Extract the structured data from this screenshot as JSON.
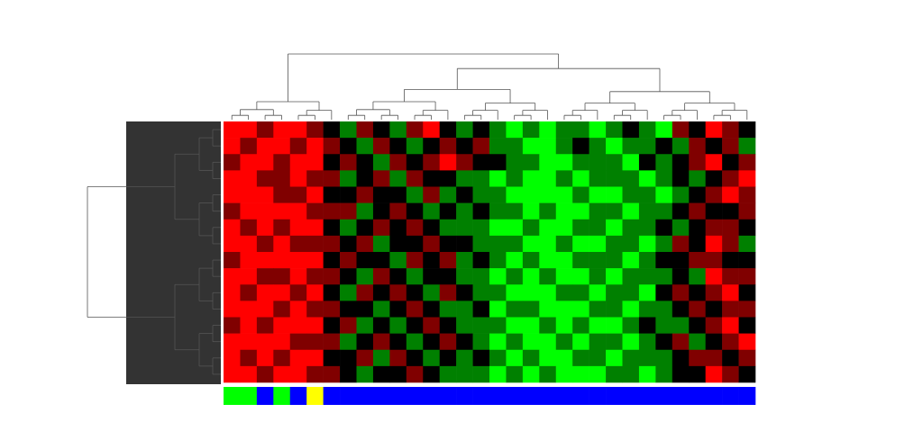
{
  "chart_data": {
    "type": "heatmap",
    "clim": [
      -2,
      2
    ],
    "colors": {
      "low": "#00ff00",
      "mid": "#000000",
      "high": "#ff0000"
    },
    "annotation": [
      "#00ff00",
      "#00ff00",
      "#0000ff",
      "#00ff00",
      "#0000ff",
      "#ffff00",
      "#0000ff",
      "#0000ff",
      "#0000ff",
      "#0000ff",
      "#0000ff",
      "#0000ff",
      "#0000ff",
      "#0000ff",
      "#0000ff",
      "#0000ff",
      "#0000ff",
      "#0000ff",
      "#0000ff",
      "#0000ff",
      "#0000ff",
      "#0000ff",
      "#0000ff",
      "#0000ff",
      "#0000ff",
      "#0000ff",
      "#0000ff",
      "#0000ff",
      "#0000ff",
      "#0000ff",
      "#0000ff",
      "#0000ff"
    ],
    "values": [
      [
        2,
        2,
        1,
        2,
        2,
        1,
        0,
        -1,
        1,
        0,
        -1,
        1,
        2,
        0,
        -1,
        0,
        -1,
        -2,
        -1,
        -2,
        -1,
        -1,
        -2,
        -1,
        0,
        -1,
        -2,
        1,
        0,
        2,
        1,
        0
      ],
      [
        2,
        1,
        2,
        2,
        1,
        2,
        1,
        0,
        -1,
        1,
        0,
        -1,
        0,
        1,
        0,
        1,
        -1,
        -1,
        -2,
        -2,
        -1,
        0,
        -1,
        -2,
        -1,
        -1,
        0,
        -1,
        1,
        0,
        1,
        -1
      ],
      [
        1,
        2,
        2,
        1,
        2,
        2,
        0,
        1,
        0,
        -1,
        1,
        0,
        1,
        2,
        1,
        0,
        0,
        -1,
        -1,
        -2,
        -2,
        -1,
        -1,
        -1,
        -2,
        0,
        -1,
        0,
        1,
        2,
        0,
        1
      ],
      [
        2,
        2,
        1,
        1,
        2,
        1,
        1,
        -1,
        0,
        1,
        -1,
        1,
        0,
        0,
        -1,
        -1,
        -2,
        -1,
        -2,
        -2,
        -1,
        -2,
        -1,
        -1,
        -1,
        -2,
        -1,
        0,
        -1,
        0,
        1,
        2
      ],
      [
        2,
        2,
        2,
        1,
        1,
        2,
        0,
        0,
        1,
        0,
        0,
        -1,
        1,
        -1,
        0,
        -1,
        -1,
        -2,
        -2,
        -2,
        -2,
        -1,
        -2,
        -2,
        -1,
        -1,
        -2,
        -1,
        0,
        1,
        2,
        1
      ],
      [
        1,
        2,
        2,
        2,
        2,
        1,
        1,
        1,
        -1,
        0,
        1,
        0,
        -1,
        0,
        -1,
        0,
        -1,
        -1,
        -2,
        -1,
        -2,
        -2,
        -1,
        -1,
        -2,
        -1,
        -1,
        0,
        1,
        0,
        0,
        1
      ],
      [
        2,
        1,
        2,
        1,
        2,
        2,
        0,
        -1,
        0,
        1,
        0,
        1,
        0,
        -1,
        -1,
        -1,
        -2,
        -2,
        -1,
        -2,
        -2,
        -1,
        -1,
        -2,
        -1,
        -1,
        0,
        -1,
        0,
        1,
        1,
        0
      ],
      [
        2,
        2,
        1,
        2,
        1,
        1,
        1,
        0,
        1,
        -1,
        0,
        0,
        1,
        0,
        0,
        -1,
        -1,
        -1,
        -2,
        -2,
        -1,
        -2,
        -2,
        -1,
        -1,
        -2,
        -1,
        1,
        0,
        2,
        1,
        -1
      ],
      [
        1,
        2,
        2,
        2,
        2,
        2,
        0,
        1,
        0,
        0,
        -1,
        1,
        0,
        1,
        -1,
        0,
        -1,
        -2,
        -1,
        -2,
        -2,
        -1,
        -1,
        -1,
        -2,
        -1,
        0,
        0,
        1,
        1,
        0,
        0
      ],
      [
        2,
        2,
        1,
        1,
        2,
        1,
        1,
        0,
        -1,
        1,
        0,
        -1,
        0,
        0,
        -1,
        -1,
        -2,
        -1,
        -2,
        -1,
        -2,
        -2,
        -1,
        -2,
        -1,
        -1,
        -1,
        0,
        -1,
        2,
        1,
        1
      ],
      [
        2,
        1,
        2,
        2,
        1,
        2,
        0,
        -1,
        1,
        0,
        1,
        0,
        -1,
        1,
        0,
        -1,
        -1,
        -2,
        -2,
        -2,
        -1,
        -1,
        -2,
        -1,
        -1,
        -2,
        0,
        1,
        0,
        1,
        2,
        0
      ],
      [
        2,
        2,
        2,
        1,
        2,
        1,
        1,
        0,
        0,
        -1,
        0,
        1,
        0,
        -1,
        -1,
        0,
        -2,
        -1,
        -1,
        -2,
        -2,
        -2,
        -1,
        -1,
        -2,
        -1,
        -1,
        0,
        1,
        0,
        1,
        1
      ],
      [
        1,
        2,
        1,
        2,
        2,
        2,
        0,
        1,
        -1,
        0,
        -1,
        0,
        1,
        0,
        -1,
        -1,
        -1,
        -2,
        -2,
        -1,
        -2,
        -1,
        -2,
        -2,
        -1,
        0,
        -1,
        -1,
        0,
        1,
        2,
        0
      ],
      [
        2,
        2,
        2,
        2,
        1,
        1,
        1,
        -1,
        0,
        1,
        0,
        -1,
        0,
        1,
        0,
        -1,
        -2,
        -1,
        -2,
        -2,
        -1,
        -2,
        -1,
        -1,
        -2,
        -1,
        0,
        1,
        -1,
        0,
        1,
        2
      ],
      [
        2,
        1,
        2,
        1,
        2,
        2,
        0,
        0,
        1,
        -1,
        1,
        0,
        -1,
        0,
        -1,
        0,
        -1,
        -2,
        -1,
        -2,
        -2,
        -1,
        -1,
        -2,
        -1,
        -1,
        -1,
        0,
        1,
        1,
        0,
        1
      ],
      [
        2,
        2,
        1,
        2,
        2,
        1,
        1,
        0,
        -1,
        0,
        0,
        1,
        0,
        -1,
        -1,
        -1,
        -2,
        -1,
        -2,
        -1,
        -2,
        -2,
        -2,
        -1,
        -1,
        -2,
        -1,
        0,
        0,
        2,
        1,
        0
      ]
    ]
  }
}
